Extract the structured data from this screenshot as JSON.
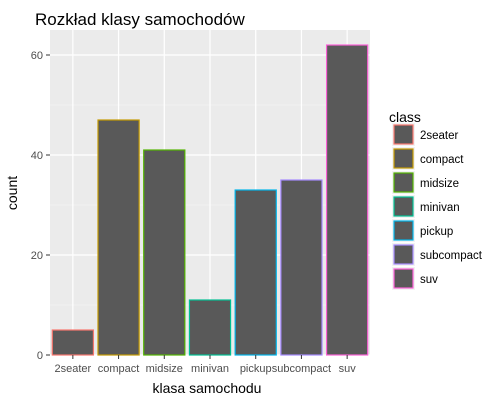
{
  "chart_data": {
    "type": "bar",
    "title": "Rozkład klasy samochodów",
    "xlabel": "klasa samochodu",
    "ylabel": "count",
    "categories": [
      "2seater",
      "compact",
      "midsize",
      "minivan",
      "pickup",
      "subcompact",
      "suv"
    ],
    "values": [
      5,
      47,
      41,
      11,
      33,
      35,
      62
    ],
    "ylim": [
      0,
      65
    ],
    "yticks": [
      0,
      20,
      40,
      60
    ],
    "grid": true,
    "legend": {
      "title": "class",
      "placement": "right",
      "entries": [
        "2seater",
        "compact",
        "midsize",
        "minivan",
        "pickup",
        "subcompact",
        "suv"
      ]
    },
    "colors": {
      "panel_background": "#ebebeb",
      "grid_major": "#ffffff",
      "bar_fill": "#595959",
      "outlines": [
        "#F8766D",
        "#C49A00",
        "#53B400",
        "#00C094",
        "#00B6EB",
        "#A58AFF",
        "#FB61D7"
      ]
    }
  }
}
